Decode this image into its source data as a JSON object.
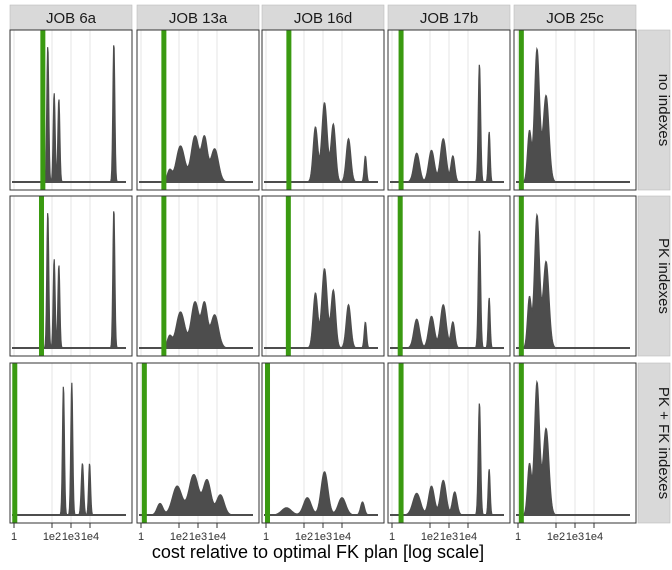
{
  "chart_data": {
    "type": "area",
    "xlabel": "cost relative to optimal FK plan  [log scale]",
    "x_scale": "log10",
    "xlim": [
      1,
      1000000
    ],
    "x_ticks": [
      {
        "value": 1,
        "label": "1"
      },
      {
        "value": 100,
        "label": "1e2"
      },
      {
        "value": 1000,
        "label": "1e3"
      },
      {
        "value": 10000,
        "label": "1e4"
      }
    ],
    "ylabel": "",
    "y_ticks_shown": false,
    "columns": [
      "JOB 6a",
      "JOB 13a",
      "JOB 16d",
      "JOB 17b",
      "JOB 25c"
    ],
    "rows": [
      "no indexes",
      "PK indexes",
      "PK + FK indexes"
    ],
    "colors": {
      "density": "#4d4d4d",
      "optimal_line": "#3a9a11",
      "grid": "#e0e0e0",
      "strip": "#d9d9d9"
    },
    "panels": [
      [
        {
          "optimum": 33,
          "peaks": [
            [
              60,
              0.95,
              0.05
            ],
            [
              130,
              0.62,
              0.05
            ],
            [
              230,
              0.58,
              0.05
            ],
            [
              180000,
              0.97,
              0.05
            ]
          ]
        },
        {
          "optimum": 16,
          "peaks": [
            [
              32,
              0.08,
              0.12
            ],
            [
              120,
              0.25,
              0.22
            ],
            [
              700,
              0.32,
              0.2
            ],
            [
              2200,
              0.3,
              0.15
            ],
            [
              7500,
              0.23,
              0.2
            ]
          ]
        },
        {
          "optimum": 16,
          "peaks": [
            [
              400,
              0.38,
              0.12
            ],
            [
              1200,
              0.55,
              0.14
            ],
            [
              3500,
              0.4,
              0.12
            ],
            [
              22000,
              0.3,
              0.12
            ],
            [
              170000,
              0.18,
              0.06
            ]
          ]
        },
        {
          "optimum": 3,
          "peaks": [
            [
              20,
              0.2,
              0.15
            ],
            [
              120,
              0.22,
              0.15
            ],
            [
              500,
              0.3,
              0.15
            ],
            [
              1600,
              0.18,
              0.1
            ],
            [
              40000,
              0.82,
              0.06
            ],
            [
              130000,
              0.35,
              0.05
            ]
          ]
        },
        {
          "optimum": 1.5,
          "peaks": [
            [
              4,
              0.35,
              0.1
            ],
            [
              10,
              0.92,
              0.13
            ],
            [
              30,
              0.6,
              0.15
            ]
          ]
        }
      ],
      [
        {
          "optimum": 28,
          "peaks": [
            [
              60,
              0.95,
              0.05
            ],
            [
              130,
              0.62,
              0.05
            ],
            [
              230,
              0.58,
              0.05
            ],
            [
              180000,
              0.97,
              0.05
            ]
          ]
        },
        {
          "optimum": 16,
          "peaks": [
            [
              32,
              0.08,
              0.12
            ],
            [
              120,
              0.25,
              0.22
            ],
            [
              700,
              0.32,
              0.2
            ],
            [
              2200,
              0.3,
              0.15
            ],
            [
              7500,
              0.23,
              0.2
            ]
          ]
        },
        {
          "optimum": 15,
          "peaks": [
            [
              400,
              0.38,
              0.12
            ],
            [
              1200,
              0.55,
              0.14
            ],
            [
              3500,
              0.4,
              0.12
            ],
            [
              22000,
              0.3,
              0.12
            ],
            [
              170000,
              0.18,
              0.06
            ]
          ]
        },
        {
          "optimum": 2.7,
          "peaks": [
            [
              20,
              0.2,
              0.15
            ],
            [
              120,
              0.22,
              0.15
            ],
            [
              500,
              0.3,
              0.15
            ],
            [
              1600,
              0.18,
              0.1
            ],
            [
              40000,
              0.82,
              0.06
            ],
            [
              130000,
              0.35,
              0.05
            ]
          ]
        },
        {
          "optimum": 1.5,
          "peaks": [
            [
              4,
              0.35,
              0.1
            ],
            [
              10,
              0.92,
              0.13
            ],
            [
              30,
              0.6,
              0.15
            ]
          ]
        }
      ],
      [
        {
          "optimum": 1.1,
          "peaks": [
            [
              400,
              0.9,
              0.05
            ],
            [
              1100,
              0.92,
              0.05
            ],
            [
              4000,
              0.36,
              0.06
            ],
            [
              9500,
              0.36,
              0.05
            ]
          ]
        },
        {
          "optimum": 1.5,
          "peaks": [
            [
              10,
              0.08,
              0.15
            ],
            [
              80,
              0.2,
              0.25
            ],
            [
              600,
              0.28,
              0.25
            ],
            [
              3000,
              0.24,
              0.2
            ],
            [
              15000,
              0.14,
              0.2
            ]
          ]
        },
        {
          "optimum": 1.2,
          "peaks": [
            [
              12,
              0.05,
              0.25
            ],
            [
              150,
              0.12,
              0.2
            ],
            [
              1200,
              0.3,
              0.18
            ],
            [
              10000,
              0.12,
              0.2
            ],
            [
              120000,
              0.09,
              0.1
            ]
          ]
        },
        {
          "optimum": 3,
          "peaks": [
            [
              20,
              0.15,
              0.2
            ],
            [
              120,
              0.2,
              0.15
            ],
            [
              500,
              0.24,
              0.15
            ],
            [
              2000,
              0.16,
              0.12
            ],
            [
              40000,
              0.78,
              0.06
            ],
            [
              130000,
              0.32,
              0.05
            ]
          ]
        },
        {
          "optimum": 1.5,
          "peaks": [
            [
              4,
              0.35,
              0.1
            ],
            [
              10,
              0.92,
              0.13
            ],
            [
              30,
              0.6,
              0.15
            ]
          ]
        }
      ]
    ]
  }
}
